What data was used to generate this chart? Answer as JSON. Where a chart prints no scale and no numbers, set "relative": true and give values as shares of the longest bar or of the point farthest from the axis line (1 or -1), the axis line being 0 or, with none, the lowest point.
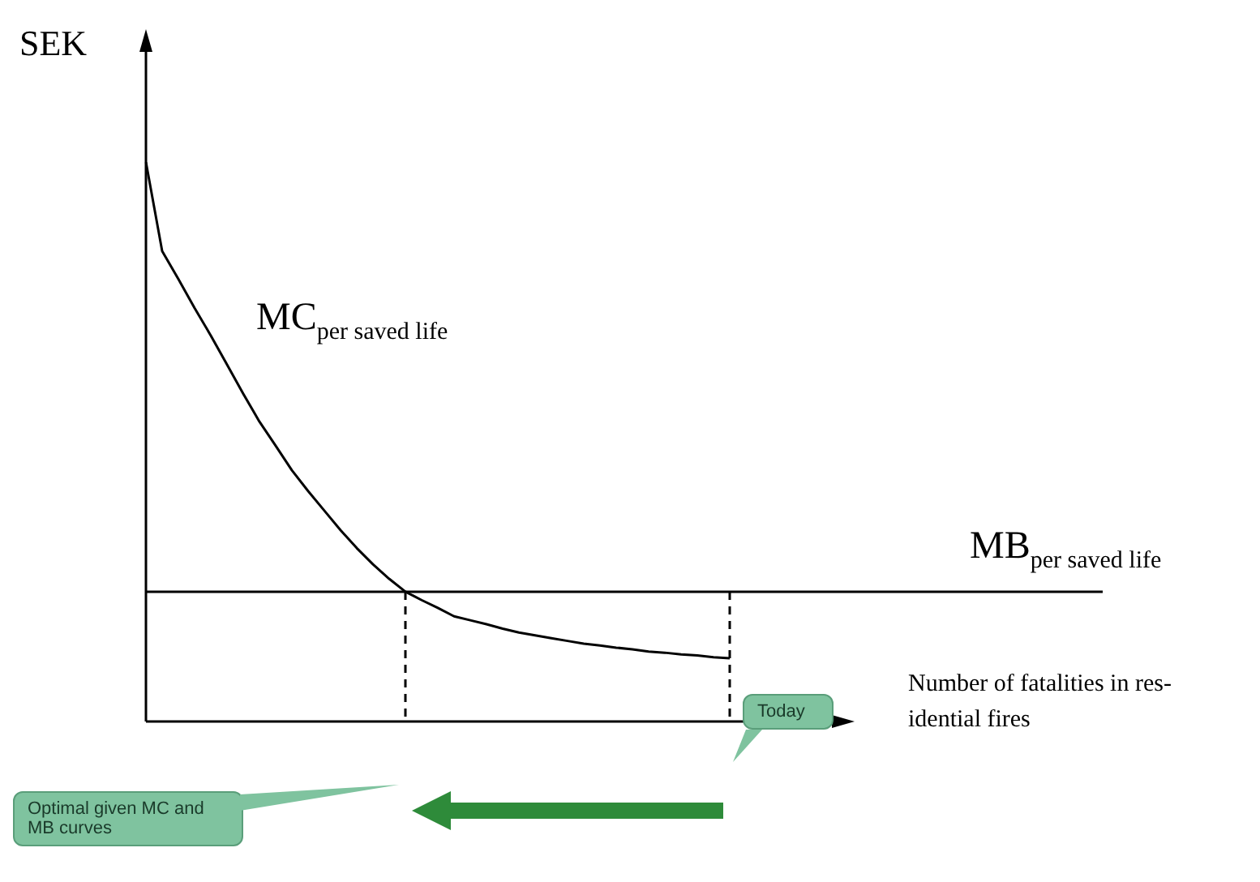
{
  "chart_data": {
    "type": "line",
    "relative": true,
    "ylabel": "SEK",
    "xlabel": "Number of fatalities in res-\nidential fires",
    "legend": false,
    "marker": "none",
    "categories": [
      null,
      null,
      null,
      null,
      null,
      null,
      null,
      null,
      null,
      null,
      null,
      null,
      null,
      null,
      null,
      null,
      null,
      null,
      null,
      null,
      null,
      null,
      null,
      null,
      null,
      null,
      null,
      null,
      null,
      null,
      null,
      null,
      null,
      null,
      null,
      null,
      null,
      null,
      null,
      null,
      null,
      null,
      null,
      null,
      null,
      null,
      null,
      null,
      null,
      null,
      null,
      null,
      null,
      null,
      null,
      null,
      null,
      null,
      null,
      null
    ],
    "series": [
      {
        "name": "MC$_{per saved life}$",
        "color": "#000000",
        "values": [
          1,
          0.841,
          0.791,
          0.739,
          0.69,
          0.638,
          0.586,
          0.536,
          0.493,
          0.449,
          0.412,
          0.377,
          0.342,
          0.31,
          0.281,
          0.255,
          0.232,
          0.217,
          0.203,
          0.188,
          0.181,
          0.174,
          0.166,
          0.159,
          0.154,
          0.149,
          0.144,
          0.139,
          0.136,
          0.132,
          0.129,
          0.125,
          0.123,
          0.12,
          0.118,
          0.115,
          0.113,
          null,
          null,
          null,
          null,
          null,
          null,
          null,
          null,
          null,
          null,
          null,
          null,
          null,
          null,
          null,
          null,
          null,
          null,
          null,
          null,
          null,
          null,
          null
        ]
      },
      {
        "name": "MB$_{per saved life}$",
        "color": "#000000",
        "values": [
          0.232,
          0.232,
          0.232,
          0.232,
          0.232,
          0.232,
          0.232,
          0.232,
          0.232,
          0.232,
          0.232,
          0.232,
          0.232,
          0.232,
          0.232,
          0.232,
          0.232,
          0.232,
          0.232,
          0.232,
          0.232,
          0.232,
          0.232,
          0.232,
          0.232,
          0.232,
          0.232,
          0.232,
          0.232,
          0.232,
          0.232,
          0.232,
          0.232,
          0.232,
          0.232,
          0.232,
          0.232,
          0.232,
          0.232,
          0.232,
          0.232,
          0.232,
          0.232,
          0.232,
          0.232,
          0.232,
          0.232,
          0.232,
          0.232,
          0.232,
          0.232,
          0.232,
          0.232,
          0.232,
          0.232,
          0.232,
          0.232,
          0.232,
          0.232,
          0.232
        ]
      }
    ],
    "annotations": [
      "Today",
      "Optimal given MC and MB curves"
    ]
  }
}
